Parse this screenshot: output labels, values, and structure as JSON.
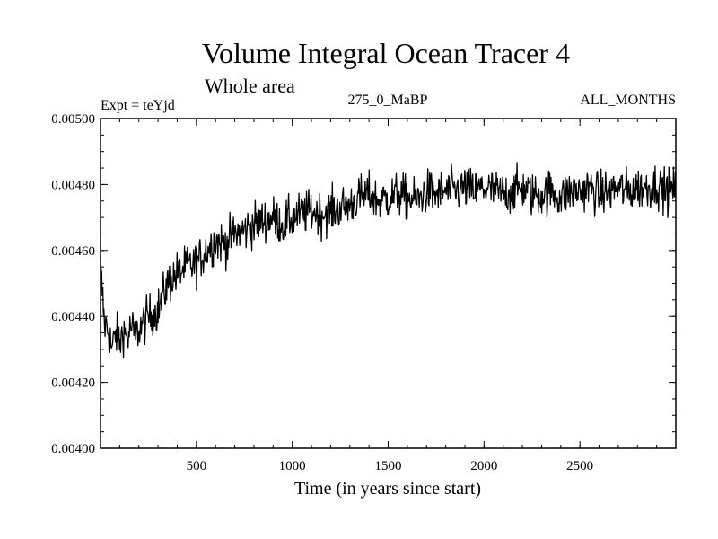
{
  "chart_data": {
    "type": "line",
    "title": "Volume Integral Ocean Tracer 4",
    "subtitle": "Whole area",
    "experiment_label": "Expt = teYjd",
    "period_label": "275_0_MaBP",
    "months_label": "ALL_MONTHS",
    "xlabel": "Time (in years since start)",
    "ylabel": "",
    "xlim": [
      0,
      3000
    ],
    "ylim": [
      0.004,
      0.005
    ],
    "x_ticks": [
      500,
      1000,
      1500,
      2000,
      2500
    ],
    "x_tick_labels": [
      "500",
      "1000",
      "1500",
      "2000",
      "2500"
    ],
    "y_ticks": [
      0.004,
      0.0042,
      0.0044,
      0.0046,
      0.0048,
      0.005
    ],
    "y_tick_labels": [
      "0.00400",
      "0.00420",
      "0.00440",
      "0.00460",
      "0.00480",
      "0.00500"
    ],
    "series": [
      {
        "name": "Tracer 4 volume integral",
        "color": "#000000",
        "x": [
          0,
          20,
          40,
          60,
          80,
          100,
          120,
          140,
          160,
          180,
          200,
          250,
          300,
          350,
          400,
          450,
          500,
          550,
          600,
          650,
          700,
          750,
          800,
          850,
          900,
          950,
          1000,
          1050,
          1100,
          1150,
          1200,
          1250,
          1300,
          1350,
          1400,
          1450,
          1500,
          1550,
          1600,
          1650,
          1700,
          1750,
          1800,
          1850,
          1900,
          1950,
          2000,
          2050,
          2100,
          2150,
          2200,
          2250,
          2300,
          2350,
          2400,
          2450,
          2500,
          2550,
          2600,
          2650,
          2700,
          2750,
          2800,
          2850,
          2900,
          2950,
          3000
        ],
        "y": [
          0.00455,
          0.00438,
          0.00436,
          0.0043,
          0.00435,
          0.00432,
          0.00436,
          0.00433,
          0.00437,
          0.00434,
          0.00436,
          0.0044,
          0.00442,
          0.0045,
          0.00453,
          0.00455,
          0.00456,
          0.0046,
          0.00463,
          0.00462,
          0.00465,
          0.00466,
          0.00468,
          0.00469,
          0.0047,
          0.00468,
          0.0047,
          0.00471,
          0.00472,
          0.00471,
          0.00472,
          0.00473,
          0.00474,
          0.00476,
          0.00477,
          0.00475,
          0.00476,
          0.00477,
          0.00476,
          0.00475,
          0.00478,
          0.00477,
          0.00478,
          0.00478,
          0.00479,
          0.00478,
          0.00479,
          0.00478,
          0.00477,
          0.00478,
          0.00479,
          0.00477,
          0.00477,
          0.00478,
          0.00476,
          0.00478,
          0.00478,
          0.00479,
          0.00477,
          0.00478,
          0.00479,
          0.00478,
          0.00479,
          0.00479,
          0.0048,
          0.00478,
          0.00479
        ]
      }
    ]
  }
}
